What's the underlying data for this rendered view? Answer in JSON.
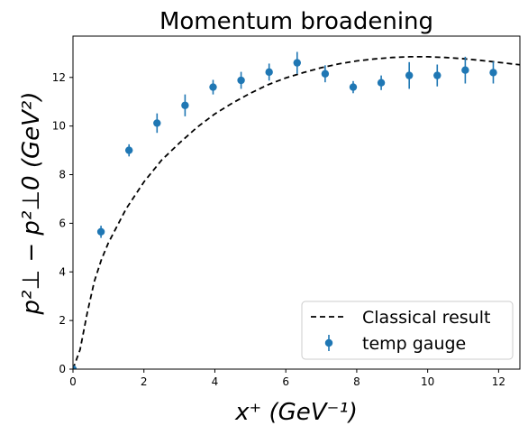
{
  "chart_data": {
    "type": "scatter",
    "title": "Momentum broadening",
    "xlabel": "x⁺  (GeV⁻¹)",
    "ylabel": "p²⊥ − p²⊥0  (GeV²)",
    "xlim": [
      0,
      12.6
    ],
    "ylim": [
      0,
      13.7
    ],
    "xticks": [
      "0",
      "2",
      "4",
      "6",
      "8",
      "10",
      "12"
    ],
    "yticks": [
      "0",
      "2",
      "4",
      "6",
      "8",
      "10",
      "12"
    ],
    "grid": false,
    "legend_position": "lower-right",
    "series": [
      {
        "name": "Classical result",
        "kind": "line",
        "style": "dashed",
        "color": "#000000",
        "x": [
          0,
          0.2,
          0.4,
          0.6,
          0.8,
          1.0,
          1.5,
          2.0,
          2.5,
          3.0,
          3.5,
          4.0,
          4.5,
          5.0,
          5.5,
          6.0,
          6.5,
          7.0,
          7.5,
          8.0,
          8.5,
          9.0,
          9.5,
          10.0,
          10.5,
          11.0,
          11.5,
          12.0,
          12.6
        ],
        "y": [
          0,
          0.8,
          2.3,
          3.6,
          4.5,
          5.2,
          6.6,
          7.7,
          8.6,
          9.3,
          9.95,
          10.5,
          10.95,
          11.35,
          11.7,
          11.98,
          12.2,
          12.4,
          12.56,
          12.68,
          12.76,
          12.82,
          12.85,
          12.85,
          12.82,
          12.77,
          12.7,
          12.62,
          12.52
        ]
      },
      {
        "name": "temp gauge",
        "kind": "errorbar",
        "color": "#1f77b4",
        "x": [
          0.0,
          0.79,
          1.58,
          2.37,
          3.16,
          3.95,
          4.74,
          5.53,
          6.32,
          7.11,
          7.9,
          8.69,
          9.48,
          10.27,
          11.06,
          11.85
        ],
        "y": [
          0.0,
          5.65,
          9.0,
          10.12,
          10.85,
          11.6,
          11.88,
          12.22,
          12.6,
          12.15,
          11.6,
          11.78,
          12.08,
          12.08,
          12.3,
          12.2
        ],
        "yerr": [
          0.05,
          0.25,
          0.25,
          0.4,
          0.45,
          0.3,
          0.35,
          0.35,
          0.45,
          0.35,
          0.25,
          0.3,
          0.55,
          0.45,
          0.55,
          0.45
        ]
      }
    ]
  }
}
